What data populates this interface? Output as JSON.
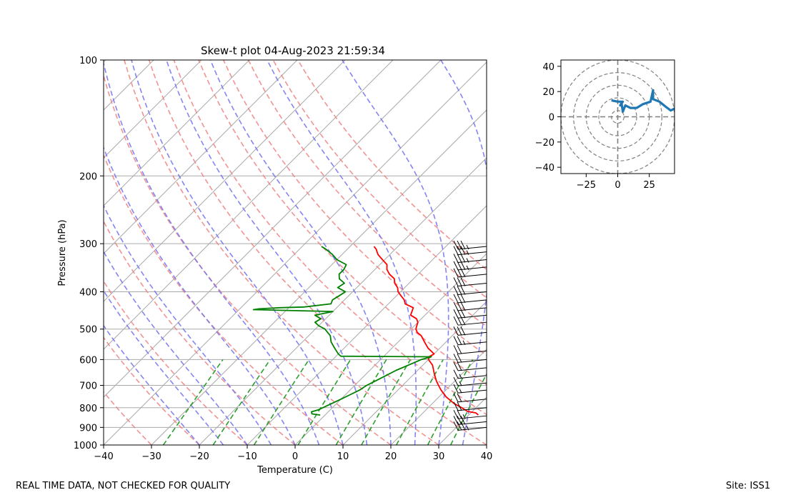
{
  "footer": {
    "note": "REAL TIME DATA, NOT CHECKED FOR QUALITY",
    "site": "Site: ISS1"
  },
  "chart_data": [
    {
      "type": "line",
      "title": "Skew-t plot 04-Aug-2023 21:59:34",
      "xlabel": "Temperature (C)",
      "ylabel": "Pressure (hPa)",
      "xlim": [
        -40,
        40
      ],
      "ylim": [
        1000,
        100
      ],
      "yscale": "log",
      "grid": true,
      "xticks": [
        -40,
        -30,
        -20,
        -10,
        0,
        10,
        20,
        30,
        40
      ],
      "yticks": [
        100,
        200,
        300,
        400,
        500,
        600,
        700,
        800,
        900,
        1000
      ],
      "colors": {
        "temperature": "#ff0000",
        "dewpoint": "#008000",
        "dry_adiabats": "#f08080",
        "moist_adiabats": "#7070f0",
        "mixing_ratio": "#2ca02c",
        "isotherms": "#aaaaaa",
        "wind_barbs": "#000000"
      },
      "series": [
        {
          "key": "temperature",
          "pressure": [
            836,
            830,
            825,
            818,
            800,
            780,
            750,
            720,
            700,
            680,
            650,
            620,
            600,
            590,
            580,
            560,
            540,
            520,
            510,
            500,
            490,
            480,
            470,
            460,
            450,
            440,
            430,
            420,
            410,
            400,
            390,
            380,
            370,
            360,
            350,
            340,
            330,
            320,
            310,
            305
          ],
          "values": [
            32.0,
            31.5,
            31.0,
            29.0,
            27.0,
            24.5,
            21.5,
            19.0,
            17.5,
            16.0,
            14.0,
            12.0,
            10.0,
            9.5,
            10.0,
            7.5,
            5.5,
            3.5,
            2.0,
            1.0,
            0.5,
            0.0,
            -1.0,
            -3.0,
            -3.5,
            -4.0,
            -6.5,
            -7.5,
            -9.0,
            -10.5,
            -11.5,
            -13.0,
            -14.0,
            -16.0,
            -17.5,
            -18.5,
            -20.5,
            -22.5,
            -24.0,
            -25.0
          ]
        },
        {
          "key": "dewpoint",
          "pressure": [
            836,
            830,
            820,
            810,
            800,
            780,
            760,
            740,
            720,
            700,
            680,
            660,
            640,
            620,
            600,
            590,
            588,
            580,
            560,
            540,
            520,
            500,
            490,
            480,
            470,
            460,
            455,
            450,
            445,
            443,
            440,
            438,
            430,
            420,
            410,
            400,
            390,
            380,
            370,
            360,
            350,
            340,
            330,
            320,
            310,
            305
          ],
          "values": [
            -1.0,
            -3.0,
            -3.5,
            -2.5,
            -2.0,
            -1.0,
            0.0,
            1.0,
            2.0,
            2.5,
            3.5,
            4.5,
            5.5,
            7.0,
            8.5,
            10.0,
            -9.0,
            -10.0,
            -12.0,
            -14.0,
            -15.5,
            -18.0,
            -20.0,
            -21.5,
            -21.0,
            -23.0,
            -21.5,
            -20.0,
            -37.0,
            -36.0,
            -32.0,
            -27.0,
            -22.0,
            -22.5,
            -22.0,
            -21.5,
            -24.0,
            -23.5,
            -25.5,
            -26.5,
            -26.5,
            -27.0,
            -30.0,
            -32.0,
            -34.5,
            -36.0
          ]
        }
      ],
      "wind_barbs": {
        "pressure": [
          900,
          870,
          840,
          800,
          760,
          720,
          690,
          660,
          630,
          600,
          570,
          540,
          510,
          480,
          460,
          440,
          420,
          400,
          380,
          360,
          345,
          330,
          315,
          305
        ],
        "speed_kt": [
          35,
          30,
          25,
          20,
          20,
          15,
          15,
          15,
          20,
          20,
          20,
          25,
          30,
          30,
          30,
          30,
          30,
          30,
          30,
          30,
          35,
          35,
          35,
          35
        ]
      }
    },
    {
      "type": "line",
      "title": "",
      "xlim": [
        -45,
        45
      ],
      "ylim": [
        -45,
        45
      ],
      "xticks": [
        -25,
        0,
        25
      ],
      "yticks": [
        -40,
        -20,
        0,
        20,
        40
      ],
      "color": "#1f77b4",
      "rings": [
        5,
        15,
        25,
        35,
        45
      ],
      "series": [
        {
          "u": [
            55,
            48,
            42,
            38,
            33,
            28,
            28,
            26,
            20,
            15,
            10,
            6,
            4,
            3,
            2,
            4,
            0,
            -5
          ],
          "v": [
            12,
            8,
            5,
            8,
            12,
            14,
            21,
            12,
            10,
            7,
            7,
            9,
            4,
            11,
            9,
            12,
            12,
            13
          ]
        }
      ]
    }
  ]
}
